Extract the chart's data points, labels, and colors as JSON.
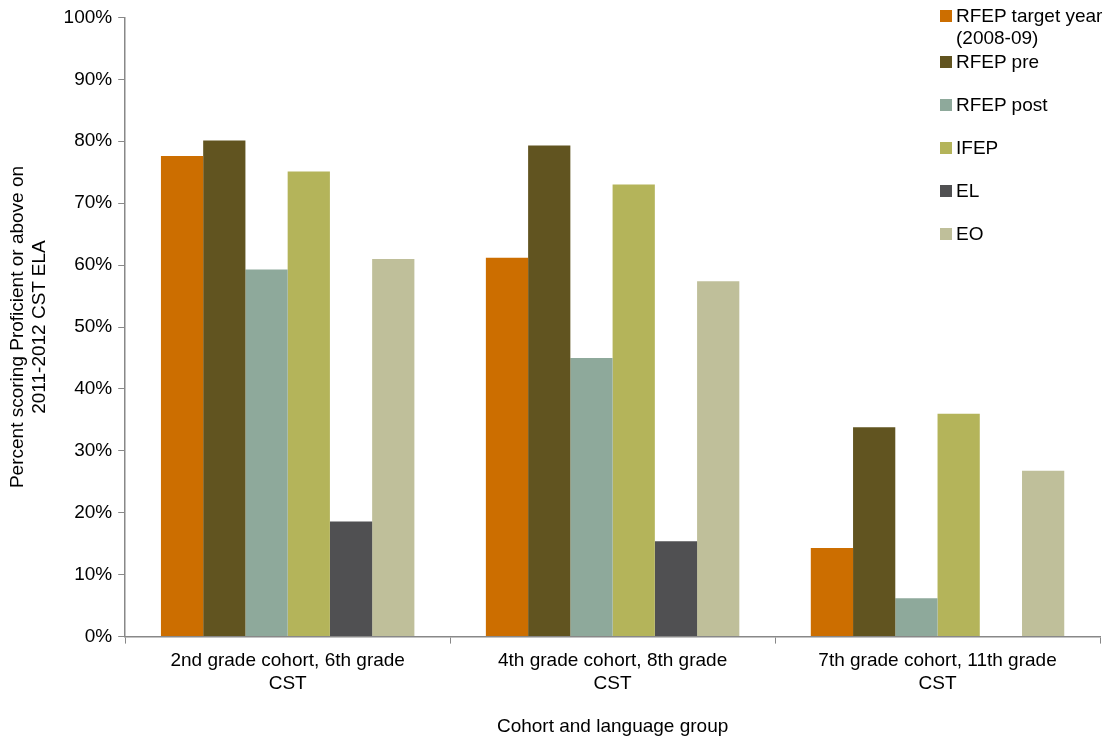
{
  "chart_data": {
    "type": "bar",
    "xlabel": "Cohort and language group",
    "ylabel": "Percent scoring Proficient or above on 2011-2012 CST ELA",
    "categories": [
      "2nd grade cohort, 6th grade CST",
      "4th grade cohort, 8th grade CST",
      "7th grade cohort, 11th grade CST"
    ],
    "series": [
      {
        "name": "RFEP target year (2008-09)",
        "color": "#cc6e00",
        "values": [
          77.6,
          61.2,
          14.3
        ]
      },
      {
        "name": "RFEP pre",
        "color": "#615420",
        "values": [
          80.1,
          79.3,
          33.8
        ]
      },
      {
        "name": "RFEP post",
        "color": "#8ea99b",
        "values": [
          59.3,
          45.0,
          6.2
        ]
      },
      {
        "name": "IFEP",
        "color": "#b4b45a",
        "values": [
          75.1,
          73.0,
          36.0
        ]
      },
      {
        "name": "EL",
        "color": "#505052",
        "values": [
          18.6,
          15.4,
          0
        ]
      },
      {
        "name": "EO",
        "color": "#bfbf9a",
        "values": [
          61.0,
          57.4,
          26.8
        ]
      }
    ],
    "ylim": [
      0,
      100
    ],
    "yticks": [
      {
        "value": 0,
        "label": "0%"
      },
      {
        "value": 10,
        "label": "10%"
      },
      {
        "value": 20,
        "label": "20%"
      },
      {
        "value": 30,
        "label": "30%"
      },
      {
        "value": 40,
        "label": "40%"
      },
      {
        "value": 50,
        "label": "50%"
      },
      {
        "value": 60,
        "label": "60%"
      },
      {
        "value": 70,
        "label": "70%"
      },
      {
        "value": 80,
        "label": "80%"
      },
      {
        "value": 90,
        "label": "90%"
      },
      {
        "value": 100,
        "label": "100%"
      }
    ],
    "legend": "top right"
  }
}
